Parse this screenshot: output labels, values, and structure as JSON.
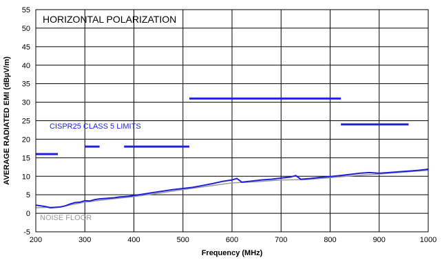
{
  "chart_data": {
    "type": "line",
    "title": "HORIZONTAL POLARIZATION",
    "xlabel": "Frequency (MHz)",
    "ylabel": "AVERAGE RADIATED EMI (dBµV/m)",
    "xlim": [
      200,
      1000
    ],
    "ylim": [
      -5,
      55
    ],
    "xticks": [
      "200",
      "300",
      "400",
      "500",
      "600",
      "700",
      "800",
      "900",
      "1000"
    ],
    "yticks": [
      "-5",
      "0",
      "5",
      "10",
      "15",
      "20",
      "25",
      "30",
      "35",
      "40",
      "45",
      "50",
      "55"
    ],
    "grid": true,
    "colors": {
      "limits": "#1f1fe0",
      "emi": "#1f1fe0",
      "noise": "#9a9a9a"
    },
    "annotations": {
      "limits_label": "CISPR25 CLASS 5 LIMITS",
      "noise_label": "NOISE FLOOR"
    },
    "limits": [
      {
        "x": [
          200,
          245
        ],
        "y": 16
      },
      {
        "x": [
          300,
          330
        ],
        "y": 18
      },
      {
        "x": [
          380,
          513
        ],
        "y": 18
      },
      {
        "x": [
          513,
          822
        ],
        "y": 31
      },
      {
        "x": [
          822,
          960
        ],
        "y": 24
      }
    ],
    "series": [
      {
        "style": "emi",
        "x": [
          200,
          210,
          220,
          230,
          240,
          250,
          260,
          270,
          280,
          290,
          300,
          310,
          320,
          330,
          340,
          350,
          360,
          370,
          380,
          390,
          400,
          420,
          440,
          460,
          480,
          500,
          520,
          540,
          560,
          580,
          600,
          610,
          620,
          640,
          660,
          680,
          700,
          720,
          730,
          740,
          760,
          780,
          800,
          820,
          840,
          860,
          880,
          900,
          920,
          940,
          960,
          980,
          1000
        ],
        "y": [
          2.2,
          2.0,
          1.8,
          1.5,
          1.6,
          1.7,
          2.0,
          2.5,
          2.9,
          3.0,
          3.4,
          3.3,
          3.7,
          3.9,
          4.0,
          4.1,
          4.2,
          4.4,
          4.5,
          4.6,
          4.8,
          5.2,
          5.6,
          6.0,
          6.4,
          6.7,
          7.0,
          7.5,
          8.0,
          8.6,
          9.0,
          9.4,
          8.4,
          8.7,
          9.0,
          9.2,
          9.5,
          9.8,
          10.2,
          9.2,
          9.4,
          9.7,
          9.9,
          10.2,
          10.5,
          10.8,
          11.0,
          10.8,
          11.0,
          11.2,
          11.4,
          11.6,
          11.9
        ]
      },
      {
        "style": "noise",
        "x": [
          200,
          250,
          300,
          350,
          400,
          450,
          500,
          550,
          600,
          650,
          700,
          750,
          800,
          850,
          900,
          950,
          1000
        ],
        "y": [
          1.5,
          1.7,
          3.0,
          3.8,
          4.5,
          5.4,
          6.4,
          7.3,
          8.2,
          8.5,
          9.0,
          9.1,
          9.6,
          10.2,
          10.6,
          11.1,
          11.6
        ]
      }
    ]
  }
}
